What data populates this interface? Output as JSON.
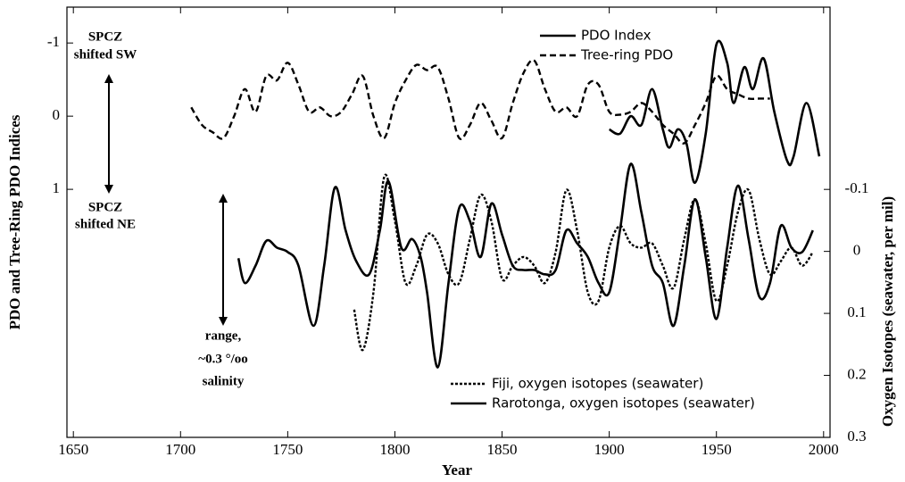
{
  "chart_data": {
    "type": "line",
    "x_label": "Year",
    "y_label": "PDO and Tree-Ring PDO Indices",
    "y2_label": "Oxygen Isotopes (seawater, per mil)",
    "annotations": [
      "SPCZ",
      "shifted SW",
      "SPCZ",
      "shifted NE",
      "range,",
      "~0.3 °/oo",
      "salinity"
    ],
    "xlim": [
      1647,
      2003
    ],
    "xticks": [
      1650,
      1700,
      1750,
      1800,
      1850,
      1900,
      1950,
      2000
    ],
    "ylim": [
      4.39,
      -1.49
    ],
    "yticks": [
      -1,
      0,
      1
    ],
    "y2lim": [
      0.3,
      -0.394
    ],
    "y2ticks": [
      -0.1,
      0,
      0.1,
      0.2,
      0.3
    ],
    "series": [
      {
        "name": "PDO Index",
        "color": "#000000",
        "line_style": "solid",
        "axis": "y",
        "x": [
          1900,
          1905,
          1910,
          1915,
          1920,
          1925,
          1928,
          1932,
          1936,
          1940,
          1945,
          1950,
          1955,
          1958,
          1963,
          1967,
          1972,
          1977,
          1983,
          1986,
          1992,
          1998
        ],
        "values": [
          0.18,
          0.24,
          0,
          0.12,
          -0.37,
          0.18,
          0.43,
          0.18,
          0.37,
          0.91,
          0.24,
          -0.98,
          -0.73,
          -0.18,
          -0.67,
          -0.37,
          -0.79,
          -0.06,
          0.61,
          0.55,
          -0.18,
          0.55
        ]
      },
      {
        "name": "Tree-ring PDO",
        "color": "#000000",
        "line_style": "dashed",
        "axis": "y",
        "x": [
          1705,
          1710,
          1715,
          1720,
          1725,
          1730,
          1735,
          1740,
          1745,
          1750,
          1755,
          1760,
          1765,
          1770,
          1775,
          1780,
          1785,
          1790,
          1795,
          1800,
          1805,
          1810,
          1815,
          1820,
          1825,
          1830,
          1835,
          1840,
          1845,
          1850,
          1855,
          1860,
          1865,
          1870,
          1875,
          1880,
          1885,
          1890,
          1895,
          1900,
          1905,
          1910,
          1915,
          1920,
          1925,
          1930,
          1935,
          1940,
          1945,
          1950,
          1955,
          1960,
          1965,
          1970,
          1975
        ],
        "values": [
          -0.12,
          0.12,
          0.22,
          0.3,
          0,
          -0.37,
          -0.06,
          -0.55,
          -0.49,
          -0.73,
          -0.43,
          -0.06,
          -0.12,
          0,
          -0.06,
          -0.3,
          -0.55,
          0,
          0.3,
          -0.18,
          -0.49,
          -0.7,
          -0.63,
          -0.67,
          -0.24,
          0.3,
          0.12,
          -0.18,
          0.06,
          0.3,
          -0.18,
          -0.59,
          -0.76,
          -0.37,
          -0.06,
          -0.12,
          0,
          -0.43,
          -0.43,
          -0.06,
          -0.02,
          -0.06,
          -0.18,
          -0.06,
          0.12,
          0.24,
          0.37,
          0.12,
          -0.18,
          -0.55,
          -0.37,
          -0.3,
          -0.24,
          -0.24,
          -0.24
        ]
      },
      {
        "name": "Fiji, oxygen isotopes (seawater)",
        "color": "#000000",
        "line_style": "dotted",
        "axis": "y2",
        "x": [
          1781,
          1785,
          1790,
          1795,
          1800,
          1805,
          1810,
          1815,
          1820,
          1825,
          1830,
          1835,
          1840,
          1845,
          1850,
          1855,
          1860,
          1865,
          1870,
          1875,
          1880,
          1885,
          1890,
          1895,
          1900,
          1905,
          1910,
          1915,
          1920,
          1925,
          1930,
          1935,
          1940,
          1945,
          1950,
          1955,
          1960,
          1965,
          1970,
          1975,
          1980,
          1985,
          1990,
          1995
        ],
        "values": [
          0.094,
          0.159,
          0.066,
          -0.12,
          -0.049,
          0.051,
          0.023,
          -0.027,
          -0.013,
          0.037,
          0.051,
          -0.02,
          -0.091,
          -0.049,
          0.044,
          0.023,
          0.009,
          0.023,
          0.051,
          0.001,
          -0.099,
          -0.034,
          0.066,
          0.08,
          -0.006,
          -0.041,
          -0.013,
          -0.006,
          -0.013,
          0.023,
          0.059,
          -0.02,
          -0.084,
          -0.013,
          0.08,
          0.023,
          -0.063,
          -0.099,
          -0.02,
          0.037,
          0.016,
          -0.006,
          0.023,
          0.001
        ]
      },
      {
        "name": "Rarotonga, oxygen isotopes (seawater)",
        "color": "#000000",
        "line_style": "solid",
        "axis": "y2",
        "x": [
          1727,
          1730,
          1735,
          1740,
          1745,
          1750,
          1755,
          1762,
          1767,
          1772,
          1777,
          1782,
          1788,
          1793,
          1797,
          1803,
          1808,
          1812,
          1815,
          1820,
          1825,
          1830,
          1835,
          1840,
          1845,
          1850,
          1855,
          1860,
          1865,
          1870,
          1875,
          1880,
          1885,
          1890,
          1895,
          1900,
          1905,
          1910,
          1915,
          1920,
          1925,
          1930,
          1935,
          1940,
          1945,
          1950,
          1955,
          1960,
          1965,
          1970,
          1975,
          1980,
          1985,
          1990,
          1995
        ],
        "values": [
          0.011,
          0.051,
          0.023,
          -0.017,
          -0.006,
          0.001,
          0.023,
          0.12,
          0.023,
          -0.103,
          -0.034,
          0.016,
          0.037,
          -0.034,
          -0.113,
          -0.006,
          -0.02,
          0.009,
          0.066,
          0.187,
          0.051,
          -0.07,
          -0.049,
          0.009,
          -0.077,
          -0.027,
          0.023,
          0.03,
          0.03,
          0.037,
          0.03,
          -0.034,
          -0.013,
          0.009,
          0.051,
          0.066,
          -0.034,
          -0.141,
          -0.063,
          0.023,
          0.051,
          0.12,
          0.023,
          -0.084,
          0.009,
          0.109,
          -0.006,
          -0.106,
          -0.02,
          0.073,
          0.051,
          -0.041,
          -0.006,
          0.001,
          -0.034
        ]
      }
    ]
  }
}
